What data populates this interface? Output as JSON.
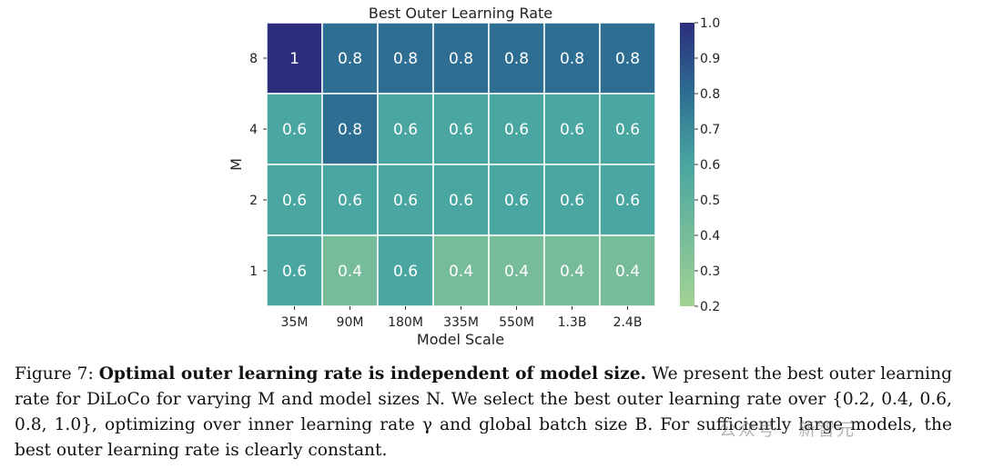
{
  "chart_data": {
    "type": "heatmap",
    "title": "Best Outer Learning Rate",
    "xlabel": "Model Scale",
    "ylabel": "M",
    "x_categories": [
      "35M",
      "90M",
      "180M",
      "335M",
      "550M",
      "1.3B",
      "2.4B"
    ],
    "y_categories": [
      "8",
      "4",
      "2",
      "1"
    ],
    "values": [
      [
        1.0,
        0.8,
        0.8,
        0.8,
        0.8,
        0.8,
        0.8
      ],
      [
        0.6,
        0.8,
        0.6,
        0.6,
        0.6,
        0.6,
        0.6
      ],
      [
        0.6,
        0.6,
        0.6,
        0.6,
        0.6,
        0.6,
        0.6
      ],
      [
        0.6,
        0.4,
        0.6,
        0.4,
        0.4,
        0.4,
        0.4
      ]
    ],
    "cell_labels": [
      [
        "1",
        "0.8",
        "0.8",
        "0.8",
        "0.8",
        "0.8",
        "0.8"
      ],
      [
        "0.6",
        "0.8",
        "0.6",
        "0.6",
        "0.6",
        "0.6",
        "0.6"
      ],
      [
        "0.6",
        "0.6",
        "0.6",
        "0.6",
        "0.6",
        "0.6",
        "0.6"
      ],
      [
        "0.6",
        "0.4",
        "0.6",
        "0.4",
        "0.4",
        "0.4",
        "0.4"
      ]
    ],
    "colorbar": {
      "min": 0.2,
      "max": 1.0,
      "ticks": [
        "1.0",
        "0.9",
        "0.8",
        "0.7",
        "0.6",
        "0.5",
        "0.4",
        "0.3",
        "0.2"
      ],
      "colormap": "crest",
      "stops": [
        "#a2d294",
        "#4aa6a0",
        "#2d6e92",
        "#2c2d7c"
      ]
    }
  },
  "caption": {
    "figure_label": "Figure 7:",
    "bold_text": "Optimal outer learning rate is independent of model size.",
    "body_text": "We present the best outer learning rate for DiLoCo for varying M and model sizes N. We select the best outer learning rate over {0.2, 0.4, 0.6, 0.8, 1.0}, optimizing over inner learning rate γ and global batch size B. For sufficiently large models, the best outer learning rate is clearly constant."
  },
  "watermark": "公众号 · 新智元"
}
